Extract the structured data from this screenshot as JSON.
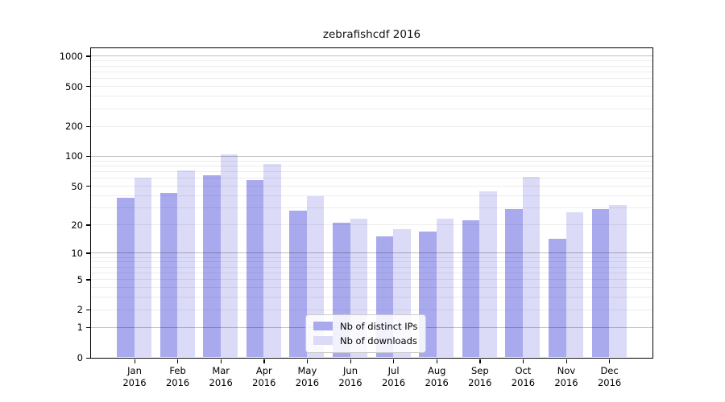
{
  "chart_data": {
    "type": "bar",
    "title": "zebrafishcdf 2016",
    "year": "2016",
    "months": [
      "Jan",
      "Feb",
      "Mar",
      "Apr",
      "May",
      "Jun",
      "Jul",
      "Aug",
      "Sep",
      "Oct",
      "Nov",
      "Dec"
    ],
    "categories": [
      "Jan 2016",
      "Feb 2016",
      "Mar 2016",
      "Apr 2016",
      "May 2016",
      "Jun 2016",
      "Jul 2016",
      "Aug 2016",
      "Sep 2016",
      "Oct 2016",
      "Nov 2016",
      "Dec 2016"
    ],
    "series": [
      {
        "name": "Nb of distinct IPs",
        "color": "#a9a9ee",
        "values": [
          38,
          42,
          64,
          57,
          28,
          21,
          15,
          17,
          22,
          29,
          14,
          29
        ]
      },
      {
        "name": "Nb of downloads",
        "color": "#dbdbf8",
        "values": [
          60,
          72,
          104,
          83,
          39,
          23,
          18,
          23,
          44,
          62,
          27,
          32
        ]
      }
    ],
    "xlabel": "",
    "ylabel": "",
    "y_scale": "log10(value+1)",
    "y_ticks": [
      1000,
      500,
      200,
      100,
      50,
      20,
      10,
      5,
      2,
      1,
      0
    ],
    "ylim": [
      0,
      1200
    ],
    "grid": "on",
    "legend_position": "bottom-center",
    "colors": {
      "distinct_ips": "#a9a9ee",
      "downloads": "#dbdbf8",
      "major_gridline": "#bfbfbf",
      "minor_gridline": "#ededed",
      "axis": "#000000",
      "legend_border": "#cccccc"
    }
  }
}
